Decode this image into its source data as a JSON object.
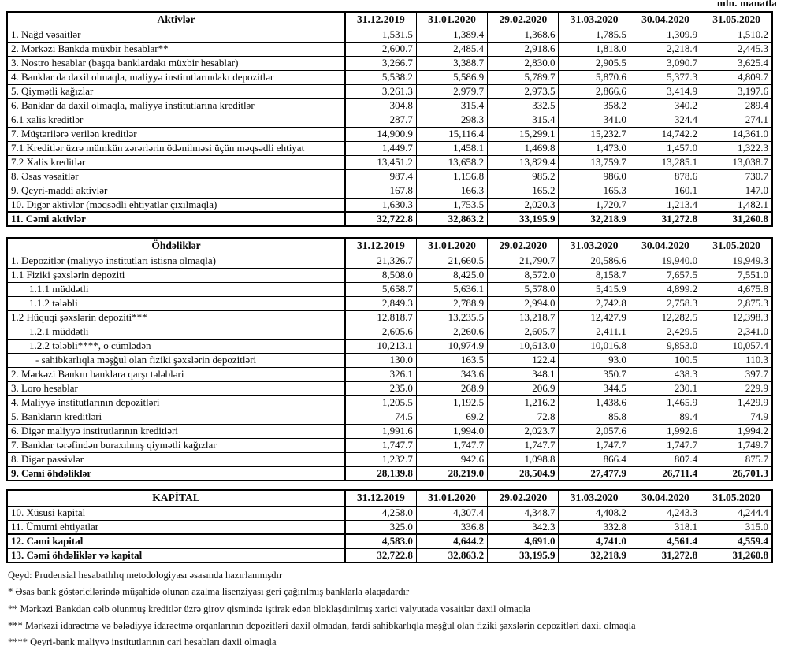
{
  "unit_label": "mln. manatla",
  "columns": [
    "31.12.2019",
    "31.01.2020",
    "29.02.2020",
    "31.03.2020",
    "30.04.2020",
    "31.05.2020"
  ],
  "sections": {
    "assets": {
      "title": "Aktivlər",
      "rows": [
        {
          "label": "1. Nağd vəsaitlər",
          "values": [
            "1,531.5",
            "1,389.4",
            "1,368.6",
            "1,785.5",
            "1,309.9",
            "1,510.2"
          ]
        },
        {
          "label": "2. Mərkəzi Bankda müxbir hesablar**",
          "values": [
            "2,600.7",
            "2,485.4",
            "2,918.6",
            "1,818.0",
            "2,218.4",
            "2,445.3"
          ]
        },
        {
          "label": "3. Nostro hesablar (başqa banklardakı müxbir hesablar)",
          "values": [
            "3,266.7",
            "3,388.7",
            "2,830.0",
            "2,905.5",
            "3,090.7",
            "3,625.4"
          ]
        },
        {
          "label": "4. Banklar da daxil olmaqla, maliyyə institutlarındakı depozitlər",
          "values": [
            "5,538.2",
            "5,586.9",
            "5,789.7",
            "5,870.6",
            "5,377.3",
            "4,809.7"
          ]
        },
        {
          "label": "5. Qiymətli kağızlar",
          "values": [
            "3,261.3",
            "2,979.7",
            "2,973.5",
            "2,866.6",
            "3,414.9",
            "3,197.6"
          ]
        },
        {
          "label": "6. Banklar da daxil olmaqla, maliyyə institutlarına kreditlər",
          "values": [
            "304.8",
            "315.4",
            "332.5",
            "358.2",
            "340.2",
            "289.4"
          ]
        },
        {
          "label": "6.1 xalis kreditlər",
          "values": [
            "287.7",
            "298.3",
            "315.4",
            "341.0",
            "324.4",
            "274.1"
          ]
        },
        {
          "label": "7. Müştərilərə verilən kreditlər",
          "values": [
            "14,900.9",
            "15,116.4",
            "15,299.1",
            "15,232.7",
            "14,742.2",
            "14,361.0"
          ]
        },
        {
          "label": "7.1 Kreditlər üzrə mümkün zərərlərin ödənilməsi üçün məqsədli ehtiyat",
          "values": [
            "1,449.7",
            "1,458.1",
            "1,469.8",
            "1,473.0",
            "1,457.0",
            "1,322.3"
          ]
        },
        {
          "label": "7.2 Xalis kreditlər",
          "values": [
            "13,451.2",
            "13,658.2",
            "13,829.4",
            "13,759.7",
            "13,285.1",
            "13,038.7"
          ]
        },
        {
          "label": "8. Əsas vəsaitlər",
          "values": [
            "987.4",
            "1,156.8",
            "985.2",
            "986.0",
            "878.6",
            "730.7"
          ]
        },
        {
          "label": "9. Qeyri-maddi aktivlər",
          "values": [
            "167.8",
            "166.3",
            "165.2",
            "165.3",
            "160.1",
            "147.0"
          ]
        },
        {
          "label": "10. Digər aktivlər (məqsədli ehtiyatlar çıxılmaqla)",
          "values": [
            "1,630.3",
            "1,753.5",
            "2,020.3",
            "1,720.7",
            "1,213.4",
            "1,482.1"
          ]
        },
        {
          "label": "11. Cəmi aktivlər",
          "total": true,
          "values": [
            "32,722.8",
            "32,863.2",
            "33,195.9",
            "32,218.9",
            "31,272.8",
            "31,260.8"
          ]
        }
      ]
    },
    "liabilities": {
      "title": "Öhdəliklər",
      "rows": [
        {
          "label": "1. Depozitlər (maliyyə institutları istisna olmaqla)",
          "values": [
            "21,326.7",
            "21,660.5",
            "21,790.7",
            "20,586.6",
            "19,940.0",
            "19,949.3"
          ]
        },
        {
          "label": "1.1 Fiziki şəxslərin depoziti",
          "values": [
            "8,508.0",
            "8,425.0",
            "8,572.0",
            "8,158.7",
            "7,657.5",
            "7,551.0"
          ]
        },
        {
          "label": "1.1.1 müddətli",
          "level": 1,
          "values": [
            "5,658.7",
            "5,636.1",
            "5,578.0",
            "5,415.9",
            "4,899.2",
            "4,675.8"
          ]
        },
        {
          "label": "1.1.2 tələbli",
          "level": 1,
          "values": [
            "2,849.3",
            "2,788.9",
            "2,994.0",
            "2,742.8",
            "2,758.3",
            "2,875.3"
          ]
        },
        {
          "label": "1.2 Hüquqi şəxslərin depoziti***",
          "values": [
            "12,818.7",
            "13,235.5",
            "13,218.7",
            "12,427.9",
            "12,282.5",
            "12,398.3"
          ]
        },
        {
          "label": "1.2.1 müddətli",
          "level": 1,
          "values": [
            "2,605.6",
            "2,260.6",
            "2,605.7",
            "2,411.1",
            "2,429.5",
            "2,341.0"
          ]
        },
        {
          "label": "1.2.2 tələbli****, o cümlədən",
          "level": 1,
          "values": [
            "10,213.1",
            "10,974.9",
            "10,613.0",
            "10,016.8",
            "9,853.0",
            "10,057.4"
          ]
        },
        {
          "label": "- sahibkarlıqla məşğul olan fiziki şəxslərin depozitləri",
          "level": 2,
          "values": [
            "130.0",
            "163.5",
            "122.4",
            "93.0",
            "100.5",
            "110.3"
          ]
        },
        {
          "label": "2. Mərkəzi Bankın banklara qarşı tələbləri",
          "values": [
            "326.1",
            "343.6",
            "348.1",
            "350.7",
            "438.3",
            "397.7"
          ]
        },
        {
          "label": "3. Loro hesablar",
          "values": [
            "235.0",
            "268.9",
            "206.9",
            "344.5",
            "230.1",
            "229.9"
          ]
        },
        {
          "label": "4. Maliyyə institutlarının depozitləri",
          "values": [
            "1,205.5",
            "1,192.5",
            "1,216.2",
            "1,438.6",
            "1,465.9",
            "1,429.9"
          ]
        },
        {
          "label": "5. Bankların kreditləri",
          "values": [
            "74.5",
            "69.2",
            "72.8",
            "85.8",
            "89.4",
            "74.9"
          ]
        },
        {
          "label": "6. Digər maliyyə institutlarının kreditləri",
          "values": [
            "1,991.6",
            "1,994.0",
            "2,023.7",
            "2,057.6",
            "1,992.6",
            "1,994.2"
          ]
        },
        {
          "label": "7. Banklar tərəfindən buraxılmış qiymətli kağızlar",
          "values": [
            "1,747.7",
            "1,747.7",
            "1,747.7",
            "1,747.7",
            "1,747.7",
            "1,749.7"
          ]
        },
        {
          "label": "8. Digər passivlər",
          "values": [
            "1,232.7",
            "942.6",
            "1,098.8",
            "866.4",
            "807.4",
            "875.7"
          ]
        },
        {
          "label": "9. Cəmi öhdəliklər",
          "total": true,
          "values": [
            "28,139.8",
            "28,219.0",
            "28,504.9",
            "27,477.9",
            "26,711.4",
            "26,701.3"
          ]
        }
      ]
    },
    "capital": {
      "title": "KAPİTAL",
      "rows": [
        {
          "label": "10. Xüsusi kapital",
          "values": [
            "4,258.0",
            "4,307.4",
            "4,348.7",
            "4,408.2",
            "4,243.3",
            "4,244.4"
          ]
        },
        {
          "label": "11. Ümumi ehtiyatlar",
          "values": [
            "325.0",
            "336.8",
            "342.3",
            "332.8",
            "318.1",
            "315.0"
          ]
        },
        {
          "label": "12. Cəmi kapital",
          "total": true,
          "values": [
            "4,583.0",
            "4,644.2",
            "4,691.0",
            "4,741.0",
            "4,561.4",
            "4,559.4"
          ]
        },
        {
          "label": "13. Cəmi öhdəliklər və kapital",
          "total": true,
          "values": [
            "32,722.8",
            "32,863.2",
            "33,195.9",
            "32,218.9",
            "31,272.8",
            "31,260.8"
          ]
        }
      ]
    }
  },
  "footnotes": [
    "Qeyd: Prudensial hesabatlılıq metodologiyası əsasında hazırlanmışdır",
    "* Əsas bank göstəricilərində müşahidə olunan azalma lisenziyası geri çağırılmış banklarla əlaqədardır",
    "** Mərkəzi Bankdan cəlb olunmuş kreditlər üzrə girov qismində iştirak edən bloklaşdırılmış xarici valyutada vəsaitlər daxil olmaqla",
    "*** Mərkəzi idarəetmə və bələdiyyə idarəetmə orqanlarının depozitləri daxil olmadan, fərdi sahibkarlıqla məşğul olan fiziki şəxslərin depozitləri daxil olmaqla",
    "**** Qeyri-bank maliyyə institutlarının cari hesabları daxil olmaqla"
  ]
}
